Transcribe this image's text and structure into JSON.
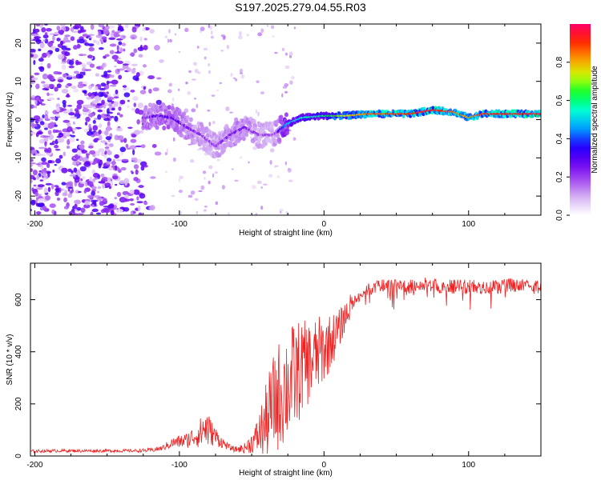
{
  "title": "S197.2025.279.04.55.R03",
  "colors": {
    "snr_line": "#ee2222",
    "axis": "#000000",
    "spectrogram_scale": [
      "#ffffff",
      "#d8b8f4",
      "#a64df0",
      "#6a00f0",
      "#1e00ff",
      "#00a0ff",
      "#00ffd8",
      "#00ff33",
      "#ccff00",
      "#ff9900",
      "#ff2200",
      "#ff0066"
    ]
  },
  "chart_data": [
    {
      "type": "heatmap",
      "name": "spectrogram",
      "xlabel": "Height of straight line (km)",
      "ylabel": "Frequency (Hz)",
      "xlim": [
        -203,
        150
      ],
      "ylim": [
        -25,
        25
      ],
      "xticks": [
        -200,
        -100,
        0,
        100
      ],
      "xtick_labels": [
        "-200",
        "-100",
        "0",
        "100"
      ],
      "yticks": [
        -20,
        -10,
        0,
        10,
        20
      ],
      "ytick_labels": [
        "-20",
        "-10",
        "0",
        "10",
        "20"
      ],
      "colorbar": {
        "label": "Normalized spectral amplitude",
        "range": [
          0,
          1
        ],
        "ticks": [
          0.0,
          0.2,
          0.4,
          0.6,
          0.8
        ],
        "tick_labels": [
          "0.0",
          "0.2",
          "0.4",
          "0.6",
          "0.8"
        ]
      },
      "ridge": [
        {
          "x": -125,
          "freq": 0.5,
          "amp": 0.25
        },
        {
          "x": -115,
          "freq": 1.0,
          "amp": 0.3
        },
        {
          "x": -105,
          "freq": 0.5,
          "amp": 0.3
        },
        {
          "x": -95,
          "freq": -2.0,
          "amp": 0.25
        },
        {
          "x": -85,
          "freq": -4.0,
          "amp": 0.22
        },
        {
          "x": -75,
          "freq": -7.0,
          "amp": 0.2
        },
        {
          "x": -65,
          "freq": -4.0,
          "amp": 0.25
        },
        {
          "x": -55,
          "freq": -2.0,
          "amp": 0.25
        },
        {
          "x": -45,
          "freq": -4.0,
          "amp": 0.2
        },
        {
          "x": -35,
          "freq": -4.0,
          "amp": 0.18
        },
        {
          "x": -25,
          "freq": -1.0,
          "amp": 0.5
        },
        {
          "x": -15,
          "freq": 0.5,
          "amp": 0.55
        },
        {
          "x": 0,
          "freq": 1.0,
          "amp": 0.6
        },
        {
          "x": 15,
          "freq": 1.0,
          "amp": 0.75
        },
        {
          "x": 30,
          "freq": 1.5,
          "amp": 0.85
        },
        {
          "x": 60,
          "freq": 1.5,
          "amp": 0.9
        },
        {
          "x": 75,
          "freq": 2.5,
          "amp": 0.95
        },
        {
          "x": 90,
          "freq": 2.0,
          "amp": 0.85
        },
        {
          "x": 100,
          "freq": 0.5,
          "amp": 0.8
        },
        {
          "x": 110,
          "freq": 1.5,
          "amp": 0.9
        },
        {
          "x": 150,
          "freq": 1.5,
          "amp": 0.95
        }
      ],
      "noise_region": {
        "x_from": -203,
        "x_to": -110,
        "amp": 0.3
      }
    },
    {
      "type": "line",
      "name": "snr",
      "xlabel": "Height of straight line (km)",
      "ylabel": "SNR (10 * v/v)",
      "xlim": [
        -203,
        150
      ],
      "ylim": [
        0,
        740
      ],
      "xticks": [
        -200,
        -100,
        0,
        100
      ],
      "xtick_labels": [
        "-200",
        "-100",
        "0",
        "100"
      ],
      "yticks": [
        0,
        200,
        400,
        600
      ],
      "ytick_labels": [
        "0",
        "200",
        "400",
        "600"
      ],
      "series": [
        {
          "name": "SNR",
          "x": [
            -203,
            -190,
            -170,
            -150,
            -130,
            -120,
            -112,
            -105,
            -100,
            -95,
            -90,
            -85,
            -82,
            -78,
            -74,
            -70,
            -66,
            -62,
            -55,
            -48,
            -42,
            -38,
            -34,
            -30,
            -26,
            -22,
            -18,
            -14,
            -10,
            -6,
            -2,
            2,
            6,
            10,
            14,
            18,
            22,
            26,
            30,
            35,
            40,
            50,
            60,
            70,
            80,
            90,
            100,
            110,
            120,
            130,
            140,
            150
          ],
          "y": [
            18,
            20,
            20,
            20,
            20,
            22,
            30,
            50,
            55,
            60,
            75,
            90,
            110,
            90,
            70,
            50,
            35,
            25,
            30,
            60,
            110,
            160,
            210,
            240,
            270,
            290,
            320,
            350,
            360,
            380,
            400,
            420,
            450,
            480,
            530,
            570,
            600,
            620,
            640,
            645,
            650,
            650,
            650,
            660,
            650,
            650,
            650,
            650,
            650,
            655,
            650,
            650
          ],
          "amp": [
            6,
            6,
            6,
            6,
            6,
            8,
            10,
            20,
            25,
            30,
            40,
            60,
            90,
            50,
            35,
            20,
            12,
            10,
            20,
            50,
            120,
            170,
            200,
            220,
            220,
            220,
            200,
            170,
            160,
            150,
            140,
            120,
            100,
            80,
            60,
            50,
            40,
            40,
            45,
            50,
            55,
            55,
            55,
            55,
            55,
            55,
            55,
            55,
            55,
            55,
            55,
            55
          ]
        }
      ]
    }
  ]
}
